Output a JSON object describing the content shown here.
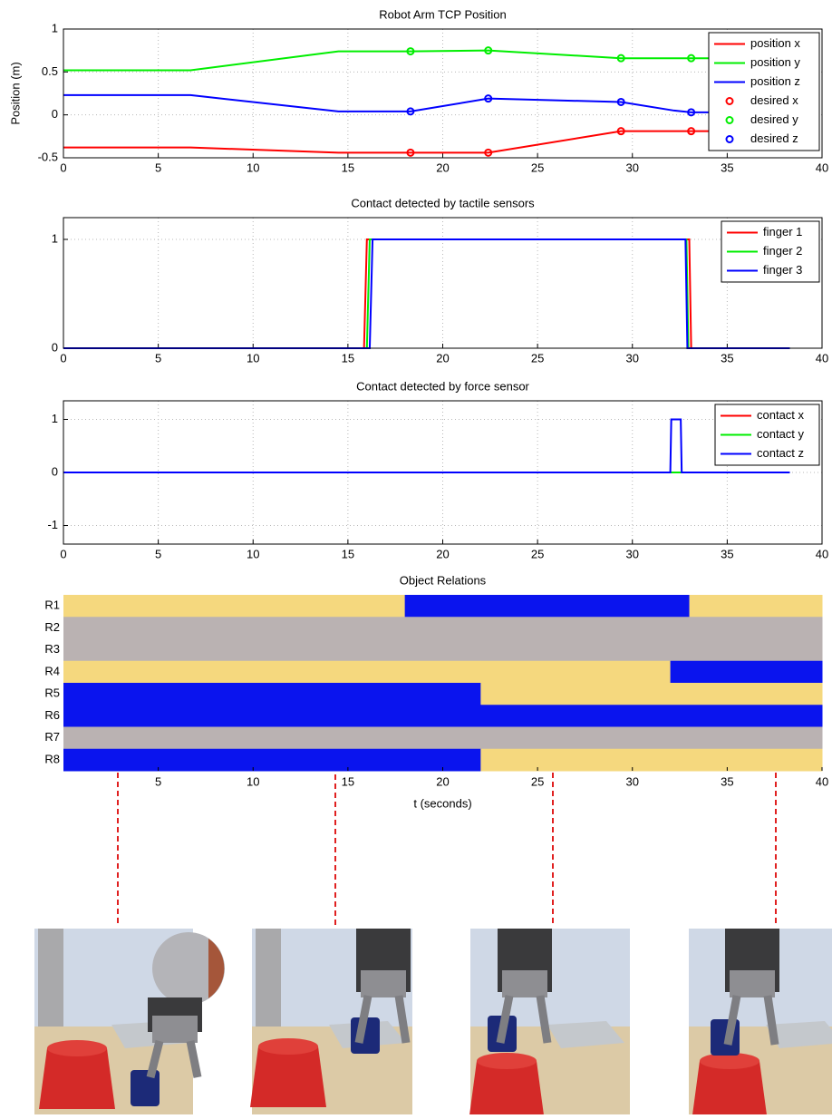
{
  "chart_data": [
    {
      "type": "line",
      "title": "Robot Arm TCP Position",
      "ylabel": "Position (m)",
      "xlim": [
        0,
        40
      ],
      "xticks": [
        0,
        5,
        10,
        15,
        20,
        25,
        30,
        35,
        40
      ],
      "ylim": [
        -0.5,
        1
      ],
      "yticks": [
        -0.5,
        0,
        0.5,
        1
      ],
      "grid": true,
      "legend": "upper right",
      "series": [
        {
          "name": "position x",
          "color": "#ff0000",
          "style": "line",
          "x": [
            0,
            6.7,
            14.5,
            18.3,
            22.4,
            29.4,
            33.1,
            38.3
          ],
          "values": [
            -0.38,
            -0.38,
            -0.44,
            -0.44,
            -0.44,
            -0.19,
            -0.19,
            -0.19
          ]
        },
        {
          "name": "position y",
          "color": "#00ee00",
          "style": "line",
          "x": [
            0,
            6.7,
            14.5,
            18.3,
            22.4,
            29.4,
            33.1,
            38.3
          ],
          "values": [
            0.52,
            0.52,
            0.74,
            0.74,
            0.75,
            0.66,
            0.66,
            0.66
          ]
        },
        {
          "name": "position z",
          "color": "#0000ff",
          "style": "line",
          "x": [
            0,
            6.7,
            14.5,
            18.3,
            22.4,
            29.4,
            32.2,
            33.1,
            38.3
          ],
          "values": [
            0.23,
            0.23,
            0.04,
            0.04,
            0.19,
            0.15,
            0.05,
            0.03,
            0.03
          ]
        },
        {
          "name": "desired x",
          "color": "#ff0000",
          "style": "marker",
          "x": [
            18.3,
            22.4,
            29.4,
            33.1
          ],
          "values": [
            -0.44,
            -0.44,
            -0.19,
            -0.19
          ]
        },
        {
          "name": "desired y",
          "color": "#00ee00",
          "style": "marker",
          "x": [
            18.3,
            22.4,
            29.4,
            33.1
          ],
          "values": [
            0.74,
            0.75,
            0.66,
            0.66
          ]
        },
        {
          "name": "desired z",
          "color": "#0000ff",
          "style": "marker",
          "x": [
            18.3,
            22.4,
            29.4,
            33.1
          ],
          "values": [
            0.04,
            0.19,
            0.15,
            0.03
          ]
        }
      ]
    },
    {
      "type": "line",
      "title": "Contact detected by tactile sensors",
      "xlim": [
        0,
        40
      ],
      "xticks": [
        0,
        5,
        10,
        15,
        20,
        25,
        30,
        35,
        40
      ],
      "ylim": [
        0,
        1.2
      ],
      "yticks": [
        0,
        1
      ],
      "grid": true,
      "legend": "upper right",
      "series": [
        {
          "name": "finger 1",
          "color": "#ff0000",
          "style": "line",
          "x": [
            0,
            15.85,
            16.0,
            33.0,
            33.1,
            38.3
          ],
          "values": [
            0,
            0,
            1,
            1,
            0,
            0
          ]
        },
        {
          "name": "finger 2",
          "color": "#00ee00",
          "style": "line",
          "x": [
            0,
            16.0,
            16.15,
            32.85,
            32.95,
            38.3
          ],
          "values": [
            0,
            0,
            1,
            1,
            0,
            0
          ]
        },
        {
          "name": "finger 3",
          "color": "#0000ff",
          "style": "line",
          "x": [
            0,
            16.15,
            16.3,
            32.8,
            32.9,
            38.3
          ],
          "values": [
            0,
            0,
            1,
            1,
            0,
            0
          ]
        }
      ]
    },
    {
      "type": "line",
      "title": "Contact detected by force sensor",
      "xlim": [
        0,
        40
      ],
      "xticks": [
        0,
        5,
        10,
        15,
        20,
        25,
        30,
        35,
        40
      ],
      "ylim": [
        -1.35,
        1.35
      ],
      "yticks": [
        -1,
        0,
        1
      ],
      "grid": true,
      "legend": "upper right",
      "series": [
        {
          "name": "contact x",
          "color": "#ff0000",
          "style": "line",
          "x": [
            0,
            38.3
          ],
          "values": [
            0,
            0
          ]
        },
        {
          "name": "contact y",
          "color": "#00ee00",
          "style": "line",
          "x": [
            0,
            38.3
          ],
          "values": [
            0,
            0
          ]
        },
        {
          "name": "contact z",
          "color": "#0000ff",
          "style": "line",
          "x": [
            0,
            32.0,
            32.05,
            32.55,
            32.6,
            38.3
          ],
          "values": [
            0,
            0,
            1,
            1,
            0,
            0
          ]
        }
      ]
    },
    {
      "type": "heatmap",
      "title": "Object Relations",
      "xlabel": "t (seconds)",
      "xlim": [
        0,
        40
      ],
      "xticks": [
        5,
        10,
        15,
        20,
        25,
        30,
        35,
        40
      ],
      "rows": [
        {
          "name": "R1",
          "segments": [
            {
              "start": 0,
              "end": 18,
              "color": "#f5d87e"
            },
            {
              "start": 18,
              "end": 33,
              "color": "#0a14ee"
            },
            {
              "start": 33,
              "end": 40,
              "color": "#f5d87e"
            }
          ]
        },
        {
          "name": "R2",
          "segments": [
            {
              "start": 0,
              "end": 40,
              "color": "#bab2b2"
            }
          ]
        },
        {
          "name": "R3",
          "segments": [
            {
              "start": 0,
              "end": 40,
              "color": "#bab2b2"
            }
          ]
        },
        {
          "name": "R4",
          "segments": [
            {
              "start": 0,
              "end": 22,
              "color": "#f5d87e"
            },
            {
              "start": 22,
              "end": 32,
              "color": "#f5d87e"
            },
            {
              "start": 32,
              "end": 40,
              "color": "#0a14ee"
            }
          ]
        },
        {
          "name": "R5",
          "segments": [
            {
              "start": 0,
              "end": 22,
              "color": "#0a14ee"
            },
            {
              "start": 22,
              "end": 32,
              "color": "#f5d87e"
            },
            {
              "start": 32,
              "end": 40,
              "color": "#f5d87e"
            }
          ]
        },
        {
          "name": "R6",
          "segments": [
            {
              "start": 0,
              "end": 22,
              "color": "#0a14ee"
            },
            {
              "start": 22,
              "end": 40,
              "color": "#0a14ee"
            }
          ]
        },
        {
          "name": "R7",
          "segments": [
            {
              "start": 0,
              "end": 40,
              "color": "#bab2b2"
            }
          ]
        },
        {
          "name": "R8",
          "segments": [
            {
              "start": 0,
              "end": 22,
              "color": "#0a14ee"
            },
            {
              "start": 22,
              "end": 40,
              "color": "#f5d87e"
            }
          ]
        }
      ]
    }
  ]
}
